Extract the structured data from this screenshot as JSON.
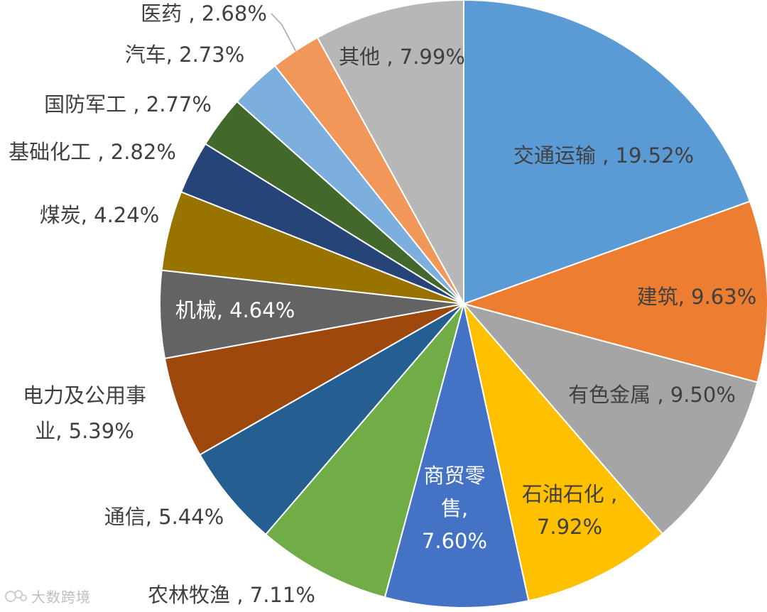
{
  "chart_data": {
    "type": "pie",
    "title": "",
    "start_angle_deg": 0,
    "direction": "clockwise",
    "slices": [
      {
        "label": "交通运输",
        "value": 19.52,
        "display": "交通运输 , 19.52%",
        "color": "#5b9bd5",
        "label_lines": [
          "交通运输 , 19.52%"
        ],
        "label_style": "inside"
      },
      {
        "label": "建筑",
        "value": 9.63,
        "display": "建筑, 9.63%",
        "color": "#ed7d31",
        "label_lines": [
          "建筑, 9.63%"
        ],
        "label_style": "inside"
      },
      {
        "label": "有色金属",
        "value": 9.5,
        "display": "有色金属 , 9.50%",
        "color": "#a5a5a5",
        "label_lines": [
          "有色金属 , 9.50%"
        ],
        "label_style": "inside"
      },
      {
        "label": "石油石化",
        "value": 7.92,
        "display": "石油石化 , 7.92%",
        "color": "#ffc000",
        "label_lines": [
          "石油石化 ,",
          "7.92%"
        ],
        "label_style": "inside"
      },
      {
        "label": "商贸零售",
        "value": 7.6,
        "display": "商贸零售, 7.60%",
        "color": "#4472c4",
        "label_lines": [
          "商贸零",
          "售,",
          "7.60%"
        ],
        "label_style": "inside"
      },
      {
        "label": "农林牧渔",
        "value": 7.11,
        "display": "农林牧渔 , 7.11%",
        "color": "#70ad47",
        "label_lines": [
          "农林牧渔 , 7.11%"
        ],
        "label_style": "outside"
      },
      {
        "label": "通信",
        "value": 5.44,
        "display": "通信, 5.44%",
        "color": "#255e91",
        "label_lines": [
          "通信, 5.44%"
        ],
        "label_style": "outside"
      },
      {
        "label": "电力及公用事业",
        "value": 5.39,
        "display": "电力及公用事业, 5.39%",
        "color": "#9e480e",
        "label_lines": [
          "电力及公用事",
          "业, 5.39%"
        ],
        "label_style": "outside"
      },
      {
        "label": "机械",
        "value": 4.64,
        "display": "机械, 4.64%",
        "color": "#636363",
        "label_lines": [
          "机械, 4.64%"
        ],
        "label_style": "inside"
      },
      {
        "label": "煤炭",
        "value": 4.24,
        "display": "煤炭, 4.24%",
        "color": "#997300",
        "label_lines": [
          "煤炭, 4.24%"
        ],
        "label_style": "outside"
      },
      {
        "label": "基础化工",
        "value": 2.82,
        "display": "基础化工 , 2.82%",
        "color": "#264478",
        "label_lines": [
          "基础化工 , 2.82%"
        ],
        "label_style": "outside"
      },
      {
        "label": "国防军工",
        "value": 2.77,
        "display": "国防军工 , 2.77%",
        "color": "#43682b",
        "label_lines": [
          "国防军工 , 2.77%"
        ],
        "label_style": "outside"
      },
      {
        "label": "汽车",
        "value": 2.73,
        "display": "汽车, 2.73%",
        "color": "#7cafdd",
        "label_lines": [
          "汽车, 2.73%"
        ],
        "label_style": "outside"
      },
      {
        "label": "医药",
        "value": 2.68,
        "display": "医药 , 2.68%",
        "color": "#f1975a",
        "label_lines": [
          "医药 , 2.68%"
        ],
        "label_style": "outside"
      },
      {
        "label": "其他",
        "value": 7.99,
        "display": "其他 , 7.99%",
        "color": "#b7b7b7",
        "label_lines": [
          "其他 , 7.99%"
        ],
        "label_style": "inside"
      }
    ]
  },
  "watermark": {
    "text": "大数跨境"
  }
}
